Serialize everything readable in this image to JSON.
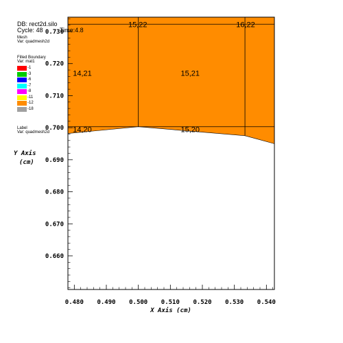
{
  "header": {
    "db": "DB: rect2d.silo",
    "cycle": "Cycle: 48",
    "time": "Time:4.8"
  },
  "legend": {
    "mesh_title": "Mesh",
    "mesh_var": "Var: quadmesh2d",
    "boundary_title": "Filled Boundary",
    "boundary_var": "Var: mat1",
    "materials": [
      {
        "label": "1",
        "color": "#ff0000"
      },
      {
        "label": "3",
        "color": "#00cc00"
      },
      {
        "label": "6",
        "color": "#0000ff"
      },
      {
        "label": "7",
        "color": "#00ffff"
      },
      {
        "label": "8",
        "color": "#ff00ff"
      },
      {
        "label": "11",
        "color": "#ffff00"
      },
      {
        "label": "12",
        "color": "#ff8c00"
      },
      {
        "label": "18",
        "color": "#a0a0a0"
      }
    ],
    "label_title": "Label",
    "label_var": "Var: quadmesh2d"
  },
  "chart_data": {
    "type": "mesh-plot",
    "xlabel": "X Axis (cm)",
    "ylabel_line1": "Y Axis",
    "ylabel_line2": "(cm)",
    "xlim": [
      0.478,
      0.5425
    ],
    "ylim": [
      0.6495,
      0.7345
    ],
    "x_ticks": [
      0.48,
      0.49,
      0.5,
      0.51,
      0.52,
      0.53,
      0.54
    ],
    "x_tick_labels": [
      "0.480",
      "0.490",
      "0.500",
      "0.510",
      "0.520",
      "0.530",
      "0.540"
    ],
    "y_ticks": [
      0.66,
      0.67,
      0.68,
      0.69,
      0.7,
      0.71,
      0.72,
      0.73
    ],
    "y_tick_labels": [
      "0.660",
      "0.670",
      "0.680",
      "0.690",
      "0.700",
      "0.710",
      "0.720",
      "0.730"
    ],
    "fill_color": "#ff8c00",
    "mesh_vertical_lines_x": [
      0.5,
      0.5333
    ],
    "mesh_horizontal_lines_y": [
      0.7323,
      0.7003
    ],
    "lower_boundary": [
      {
        "x": 0.478,
        "y": 0.6982
      },
      {
        "x": 0.5,
        "y": 0.7003
      },
      {
        "x": 0.5333,
        "y": 0.6975
      },
      {
        "x": 0.5425,
        "y": 0.695
      }
    ],
    "cell_labels": [
      {
        "text": "15,22",
        "x": 0.4998,
        "y": 0.7323
      },
      {
        "text": "16,22",
        "x": 0.5335,
        "y": 0.7323
      },
      {
        "text": "14,21",
        "x": 0.4825,
        "y": 0.717
      },
      {
        "text": "15,21",
        "x": 0.5162,
        "y": 0.717
      },
      {
        "text": "14,20",
        "x": 0.4825,
        "y": 0.6995
      },
      {
        "text": "15,20",
        "x": 0.5162,
        "y": 0.6995
      }
    ]
  }
}
